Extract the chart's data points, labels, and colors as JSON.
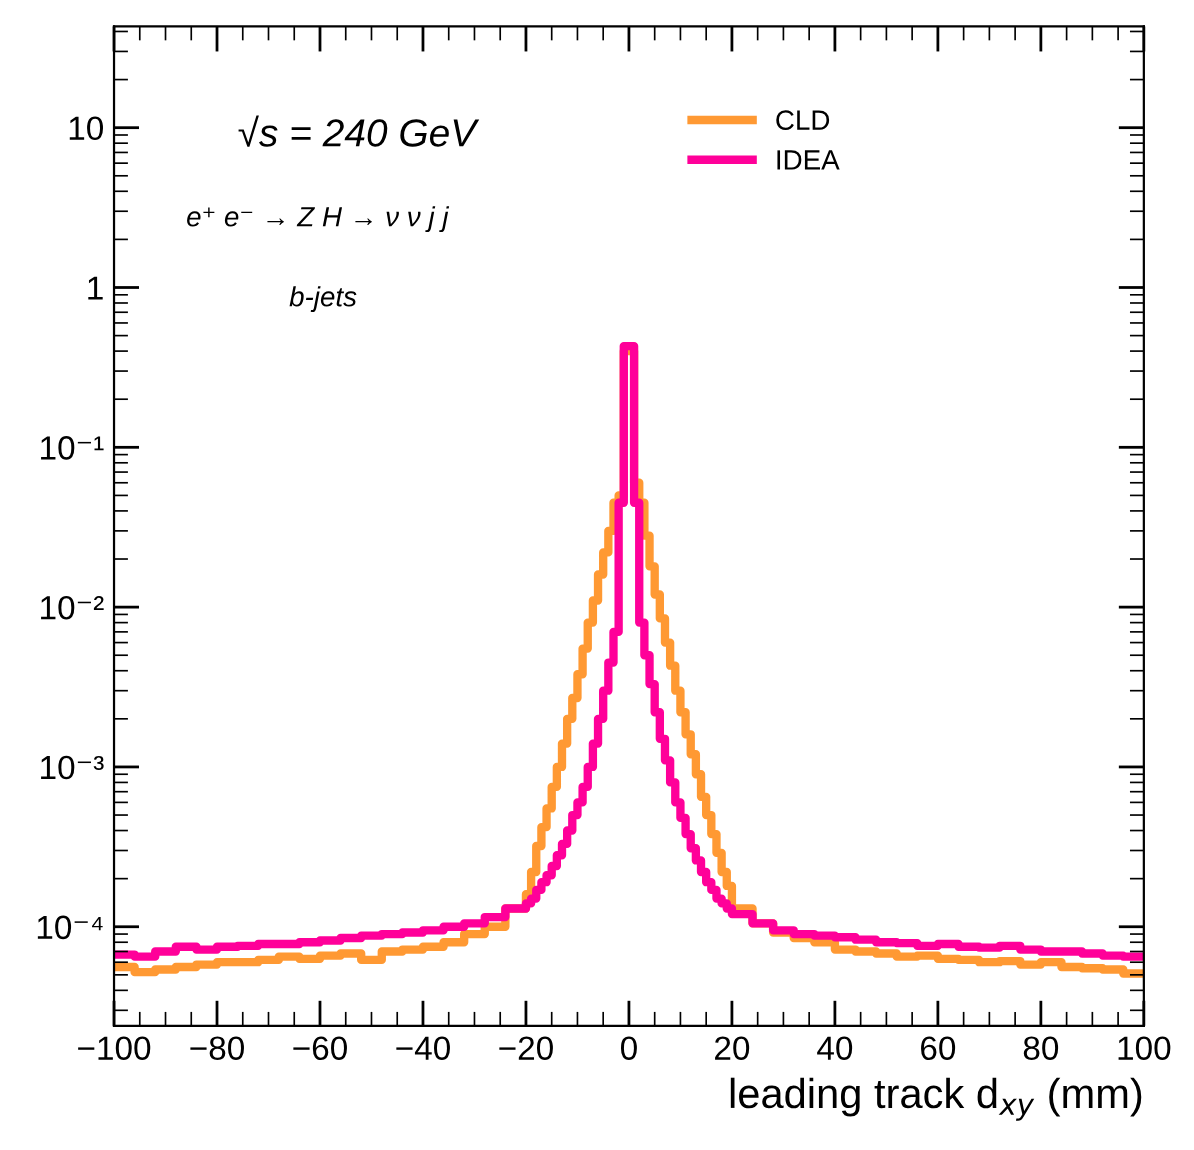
{
  "chart_data": {
    "type": "histogram",
    "xlabel": "leading track d$_{xy}$ (mm)",
    "annotations": [
      "√s = 240 GeV",
      "e⁺ e⁻ → Z H → ν ν j j",
      "b-jets"
    ],
    "bins": [
      -100,
      -96,
      -92,
      -88,
      -84,
      -80,
      -76,
      -72,
      -68,
      -64,
      -60,
      -56,
      -52,
      -48,
      -44,
      -40,
      -36,
      -32,
      -28,
      -24,
      -20,
      -19,
      -18,
      -17,
      -16,
      -15,
      -14,
      -13,
      -12,
      -11,
      -10,
      -9,
      -8,
      -7,
      -6,
      -5,
      -4,
      -3,
      -2,
      -1,
      0,
      1,
      2,
      3,
      4,
      5,
      6,
      7,
      8,
      9,
      10,
      11,
      12,
      13,
      14,
      15,
      16,
      17,
      18,
      19,
      20,
      24,
      28,
      32,
      36,
      40,
      44,
      48,
      52,
      56,
      60,
      64,
      68,
      72,
      76,
      80,
      84,
      88,
      92,
      96,
      100
    ],
    "series": [
      {
        "name": "CLD",
        "color": "#ff9933",
        "values": [
          5.6e-05,
          5.2e-05,
          5.4e-05,
          5.6e-05,
          5.8e-05,
          6e-05,
          6e-05,
          6.2e-05,
          6.5e-05,
          6.3e-05,
          6.6e-05,
          6.8e-05,
          6.2e-05,
          7e-05,
          7.2e-05,
          7.5e-05,
          8e-05,
          9e-05,
          0.0001,
          0.00013,
          0.00016,
          0.00022,
          0.00032,
          0.00042,
          0.00055,
          0.00075,
          0.001,
          0.0014,
          0.002,
          0.0027,
          0.0038,
          0.0055,
          0.008,
          0.011,
          0.016,
          0.022,
          0.03,
          0.045,
          0.05,
          0.4,
          0.4,
          0.06,
          0.045,
          0.028,
          0.018,
          0.012,
          0.0085,
          0.006,
          0.0043,
          0.003,
          0.0022,
          0.0016,
          0.0012,
          0.0009,
          0.00065,
          0.0005,
          0.00038,
          0.00029,
          0.00022,
          0.00018,
          0.00013,
          0.000105,
          9.2e-05,
          8.5e-05,
          8e-05,
          7.2e-05,
          7e-05,
          6.8e-05,
          6.5e-05,
          6.6e-05,
          6.3e-05,
          6.2e-05,
          6e-05,
          6.1e-05,
          5.8e-05,
          6e-05,
          5.6e-05,
          5.5e-05,
          5.4e-05,
          5.1e-05
        ]
      },
      {
        "name": "IDEA",
        "color": "#ff0099",
        "values": [
          6.7e-05,
          6.5e-05,
          7e-05,
          7.5e-05,
          7.2e-05,
          7.5e-05,
          7.6e-05,
          7.8e-05,
          7.8e-05,
          8e-05,
          8.2e-05,
          8.5e-05,
          8.8e-05,
          9e-05,
          9.2e-05,
          9.5e-05,
          0.0001,
          0.000105,
          0.000115,
          0.00013,
          0.00014,
          0.00015,
          0.00017,
          0.00019,
          0.00021,
          0.00024,
          0.00028,
          0.00033,
          0.0004,
          0.0005,
          0.0006,
          0.00075,
          0.001,
          0.0014,
          0.002,
          0.003,
          0.0045,
          0.007,
          0.045,
          0.43,
          0.43,
          0.045,
          0.008,
          0.005,
          0.0033,
          0.0022,
          0.0015,
          0.0011,
          0.0008,
          0.0006,
          0.00048,
          0.00038,
          0.00031,
          0.00026,
          0.00022,
          0.00019,
          0.00017,
          0.00015,
          0.00014,
          0.00013,
          0.00012,
          0.000105,
          9.5e-05,
          9e-05,
          8.8e-05,
          8.6e-05,
          8.3e-05,
          8e-05,
          7.9e-05,
          7.6e-05,
          7.8e-05,
          7.5e-05,
          7.4e-05,
          7.6e-05,
          7.2e-05,
          7e-05,
          7e-05,
          6.8e-05,
          6.6e-05,
          6.5e-05
        ]
      }
    ],
    "log": "y",
    "xlim": [
      -100,
      100
    ],
    "ylim": [
      2.4e-05,
      43
    ],
    "xticks": [
      {
        "value": -100,
        "label": "−100"
      },
      {
        "value": -80,
        "label": "−80"
      },
      {
        "value": -60,
        "label": "−60"
      },
      {
        "value": -40,
        "label": "−40"
      },
      {
        "value": -20,
        "label": "−20"
      },
      0,
      20,
      40,
      60,
      80,
      100
    ],
    "yticks": [
      {
        "value": 0.0001,
        "label": "10⁻⁴"
      },
      {
        "value": 0.001,
        "label": "10⁻³"
      },
      {
        "value": 0.01,
        "label": "10⁻²"
      },
      {
        "value": 0.1,
        "label": "10⁻¹"
      },
      1,
      10
    ],
    "legend": "top right",
    "grid": false
  }
}
